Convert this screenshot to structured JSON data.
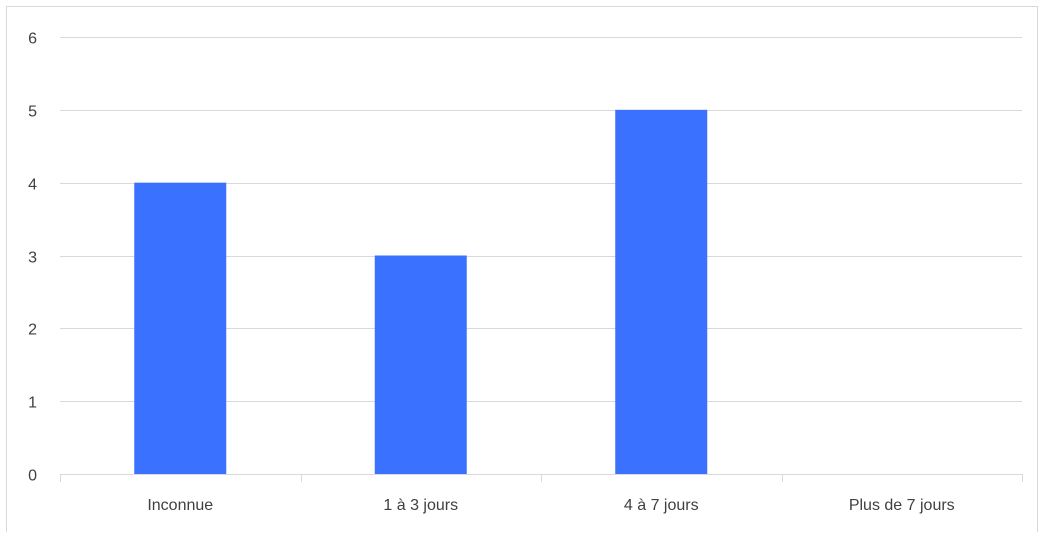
{
  "chart_data": {
    "type": "bar",
    "categories": [
      "Inconnue",
      "1 à 3 jours",
      "4 à 7 jours",
      "Plus de 7 jours"
    ],
    "values": [
      4,
      3,
      5,
      0
    ],
    "title": "",
    "xlabel": "",
    "ylabel": "",
    "ylim": [
      0,
      6
    ],
    "yticks": [
      "0",
      "1",
      "2",
      "3",
      "4",
      "5",
      "6"
    ],
    "grid": true,
    "legend": "none",
    "colors": {
      "bar": "#3a71ff",
      "grid": "#d9d9d9",
      "axis": "#d9d9d9",
      "text": "#404040"
    }
  }
}
